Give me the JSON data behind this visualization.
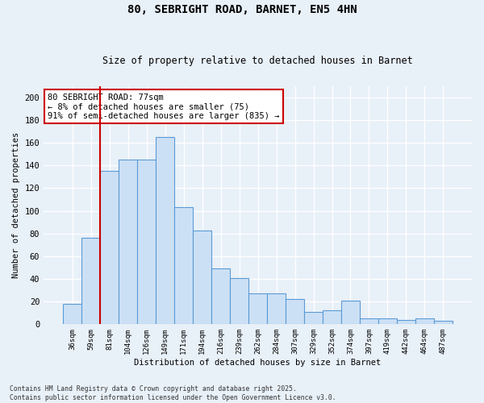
{
  "title1": "80, SEBRIGHT ROAD, BARNET, EN5 4HN",
  "title2": "Size of property relative to detached houses in Barnet",
  "xlabel": "Distribution of detached houses by size in Barnet",
  "ylabel": "Number of detached properties",
  "bar_labels": [
    "36sqm",
    "59sqm",
    "81sqm",
    "104sqm",
    "126sqm",
    "149sqm",
    "171sqm",
    "194sqm",
    "216sqm",
    "239sqm",
    "262sqm",
    "284sqm",
    "307sqm",
    "329sqm",
    "352sqm",
    "374sqm",
    "397sqm",
    "419sqm",
    "442sqm",
    "464sqm",
    "487sqm"
  ],
  "bar_heights": [
    18,
    76,
    135,
    145,
    145,
    165,
    103,
    83,
    49,
    41,
    27,
    27,
    22,
    11,
    12,
    21,
    5,
    5,
    4,
    5,
    3
  ],
  "bar_color": "#cce0f5",
  "bar_edge_color": "#5b9bd5",
  "background_color": "#e8f0f8",
  "grid_color": "#ffffff",
  "vline_color": "#cc0000",
  "vline_pos": 1.5,
  "annotation_text": "80 SEBRIGHT ROAD: 77sqm\n← 8% of detached houses are smaller (75)\n91% of semi-detached houses are larger (835) →",
  "annotation_box_color": "#ffffff",
  "annotation_box_edge": "#cc0000",
  "footnote": "Contains HM Land Registry data © Crown copyright and database right 2025.\nContains public sector information licensed under the Open Government Licence v3.0.",
  "ylim": [
    0,
    210
  ],
  "yticks": [
    0,
    20,
    40,
    60,
    80,
    100,
    120,
    140,
    160,
    180,
    200
  ]
}
